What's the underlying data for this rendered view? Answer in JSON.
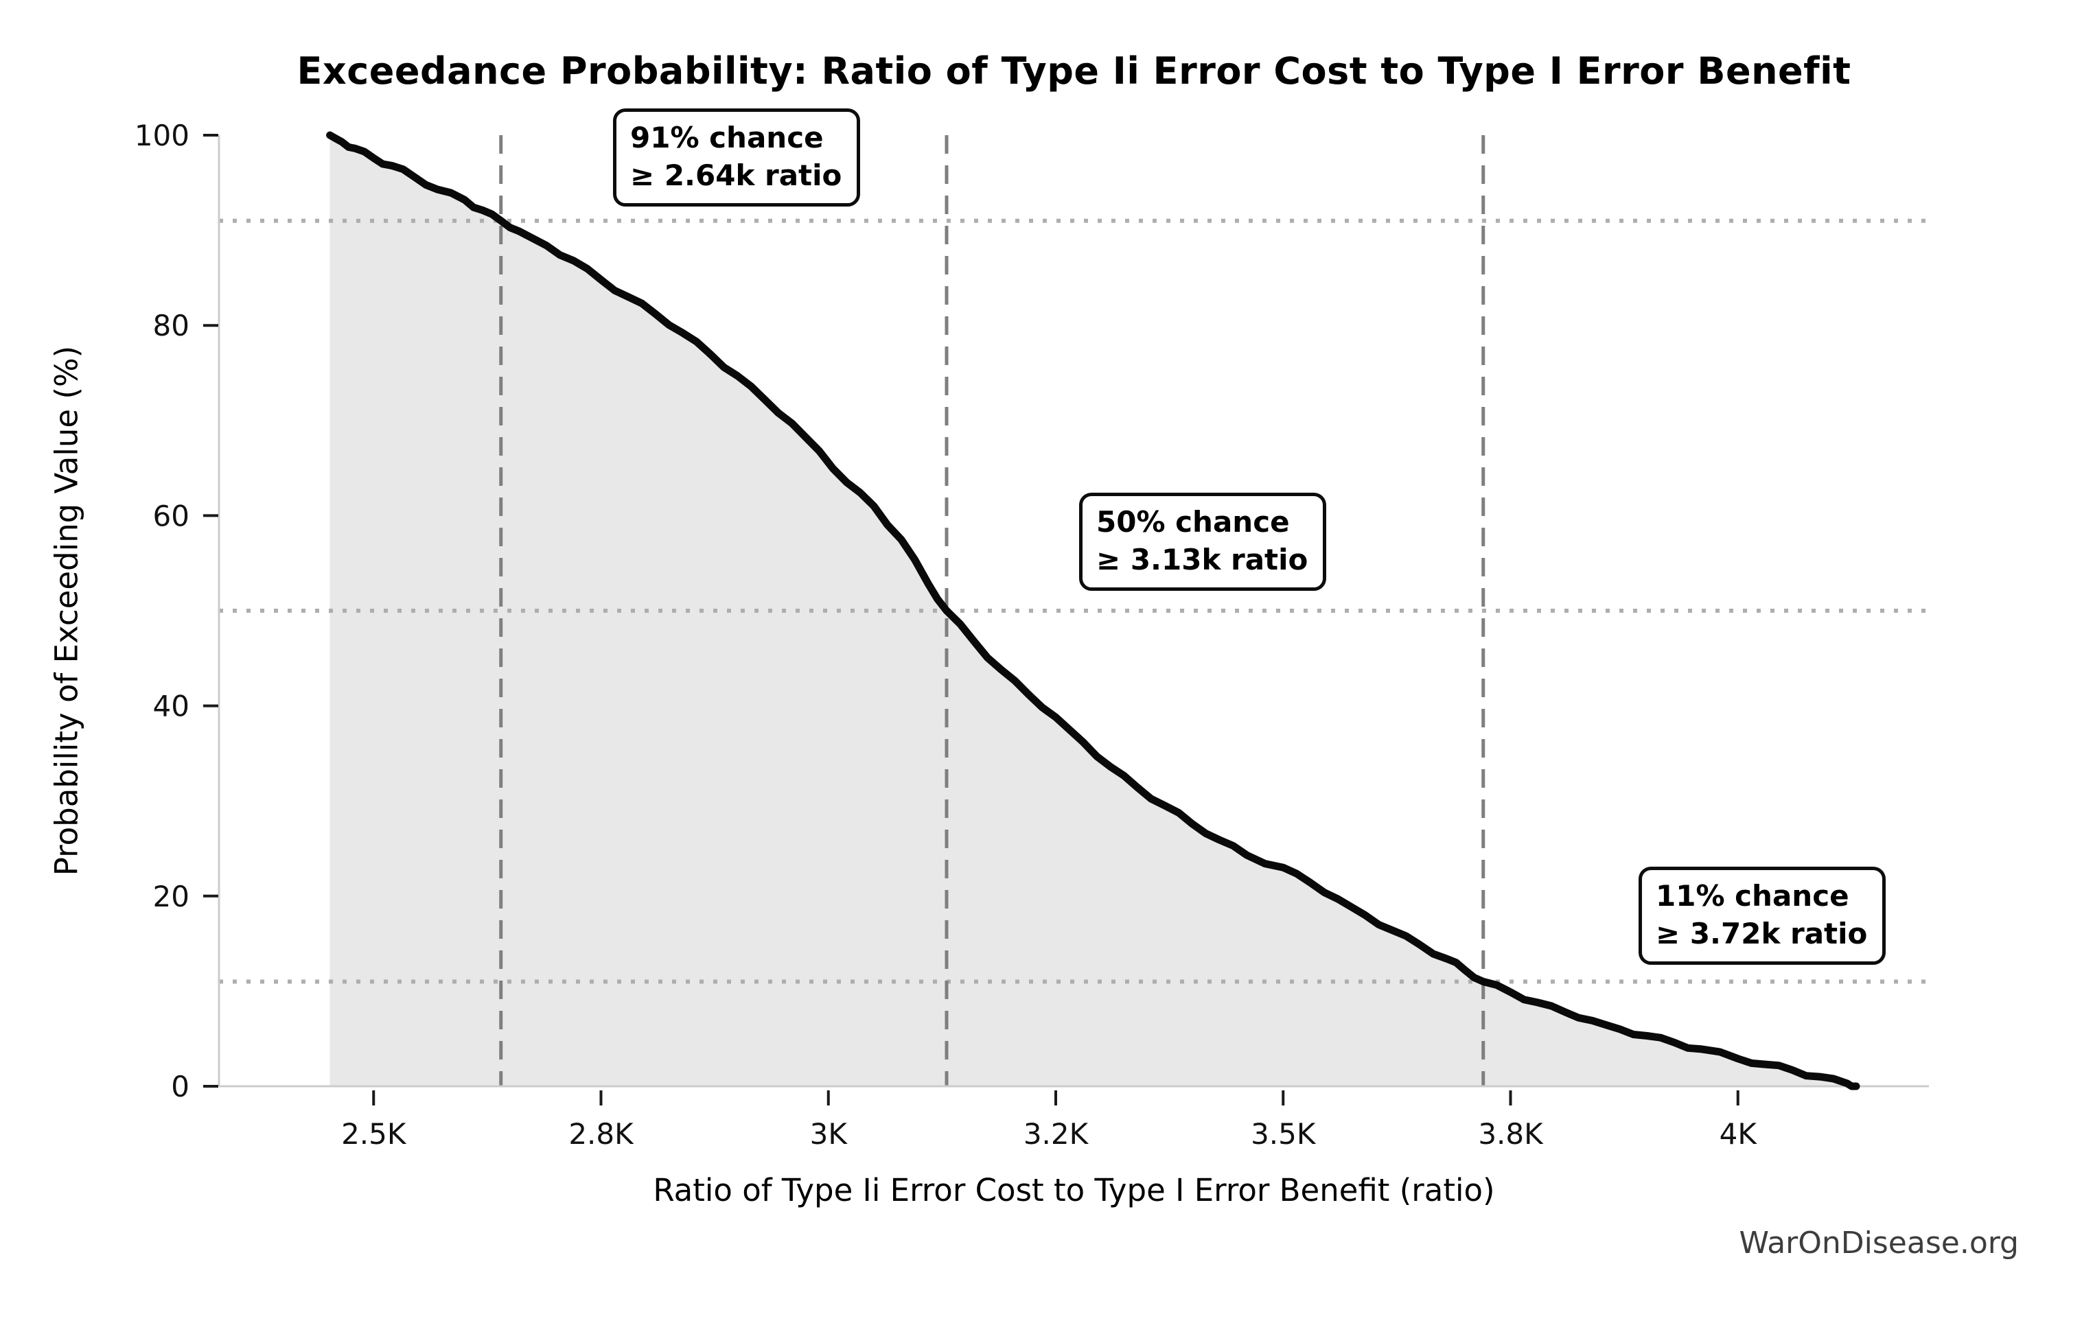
{
  "watermark": "WarOnDisease.org",
  "chart_data": {
    "type": "area",
    "subtype": "exceedance-curve",
    "title": "Exceedance Probability: Ratio of Type Ii Error Cost to Type I Error Benefit",
    "xlabel": "Ratio of Type Ii Error Cost to Type I Error Benefit (ratio)",
    "ylabel": "Probability of Exceeding Value (%)",
    "x_unit_note": "x values are ratios in thousands (K)",
    "xlim": [
      2.33,
      4.21
    ],
    "ylim": [
      0,
      100
    ],
    "grid": {
      "dashed_vertical_x": [
        2.64,
        3.13,
        3.72
      ],
      "dotted_horizontal_y": [
        91,
        50,
        11
      ]
    },
    "legend": "none",
    "xticks": [
      {
        "v": 2.5,
        "label": "2.5K"
      },
      {
        "v": 2.75,
        "label": "2.8K"
      },
      {
        "v": 3.0,
        "label": "3K"
      },
      {
        "v": 3.25,
        "label": "3.2K"
      },
      {
        "v": 3.5,
        "label": "3.5K"
      },
      {
        "v": 3.75,
        "label": "3.8K"
      },
      {
        "v": 4.0,
        "label": "4K"
      }
    ],
    "yticks": [
      {
        "v": 0,
        "label": "0"
      },
      {
        "v": 20,
        "label": "20"
      },
      {
        "v": 40,
        "label": "40"
      },
      {
        "v": 60,
        "label": "60"
      },
      {
        "v": 80,
        "label": "80"
      },
      {
        "v": 100,
        "label": "100"
      }
    ],
    "series": [
      {
        "name": "exceedance probability",
        "points": [
          [
            2.452,
            100
          ],
          [
            2.465,
            99.3
          ],
          [
            2.48,
            98.6
          ],
          [
            2.5,
            97.6
          ],
          [
            2.52,
            96.8
          ],
          [
            2.545,
            95.6
          ],
          [
            2.57,
            94.3
          ],
          [
            2.6,
            93.2
          ],
          [
            2.62,
            92.1
          ],
          [
            2.64,
            91.0
          ],
          [
            2.66,
            89.9
          ],
          [
            2.69,
            88.4
          ],
          [
            2.72,
            86.8
          ],
          [
            2.75,
            84.8
          ],
          [
            2.78,
            83.0
          ],
          [
            2.81,
            81.2
          ],
          [
            2.84,
            79.2
          ],
          [
            2.87,
            77.0
          ],
          [
            2.9,
            74.7
          ],
          [
            2.93,
            72.2
          ],
          [
            2.96,
            69.7
          ],
          [
            2.99,
            66.8
          ],
          [
            3.02,
            63.5
          ],
          [
            3.05,
            61.0
          ],
          [
            3.08,
            57.5
          ],
          [
            3.11,
            52.8
          ],
          [
            3.13,
            50.0
          ],
          [
            3.16,
            46.8
          ],
          [
            3.19,
            43.8
          ],
          [
            3.22,
            41.2
          ],
          [
            3.25,
            38.8
          ],
          [
            3.28,
            36.2
          ],
          [
            3.31,
            33.6
          ],
          [
            3.34,
            31.4
          ],
          [
            3.37,
            29.5
          ],
          [
            3.4,
            27.6
          ],
          [
            3.43,
            25.9
          ],
          [
            3.46,
            24.3
          ],
          [
            3.5,
            23.0
          ],
          [
            3.53,
            21.4
          ],
          [
            3.56,
            19.7
          ],
          [
            3.59,
            18.0
          ],
          [
            3.62,
            16.4
          ],
          [
            3.65,
            14.9
          ],
          [
            3.68,
            13.4
          ],
          [
            3.7,
            12.2
          ],
          [
            3.72,
            11.0
          ],
          [
            3.75,
            9.9
          ],
          [
            3.78,
            8.8
          ],
          [
            3.81,
            7.8
          ],
          [
            3.84,
            6.9
          ],
          [
            3.87,
            6.0
          ],
          [
            3.9,
            5.3
          ],
          [
            3.93,
            4.6
          ],
          [
            3.96,
            3.9
          ],
          [
            4.0,
            2.9
          ],
          [
            4.03,
            2.3
          ],
          [
            4.06,
            1.7
          ],
          [
            4.09,
            1.0
          ],
          [
            4.12,
            0.3
          ],
          [
            4.13,
            0.0
          ]
        ]
      }
    ],
    "annotations": [
      {
        "line1": "91% chance",
        "line2": "≥ 2.64k ratio",
        "prob_pct": 91,
        "ratio_k": 2.64
      },
      {
        "line1": "50% chance",
        "line2": "≥ 3.13k ratio",
        "prob_pct": 50,
        "ratio_k": 3.13
      },
      {
        "line1": "11% chance",
        "line2": "≥ 3.72k ratio",
        "prob_pct": 11,
        "ratio_k": 3.72
      }
    ],
    "colors": {
      "curve": "#0a0a0a",
      "fill": "#e8e8e8",
      "dashed_line": "#7f7f7f",
      "dotted_line": "#aeaeae",
      "spine": "#cccccc",
      "tick": "#1a1a1a",
      "tick_label": "#111111",
      "watermark": "#3d3d3d",
      "annotation_border": "#0d0d0d",
      "background": "#ffffff"
    }
  }
}
